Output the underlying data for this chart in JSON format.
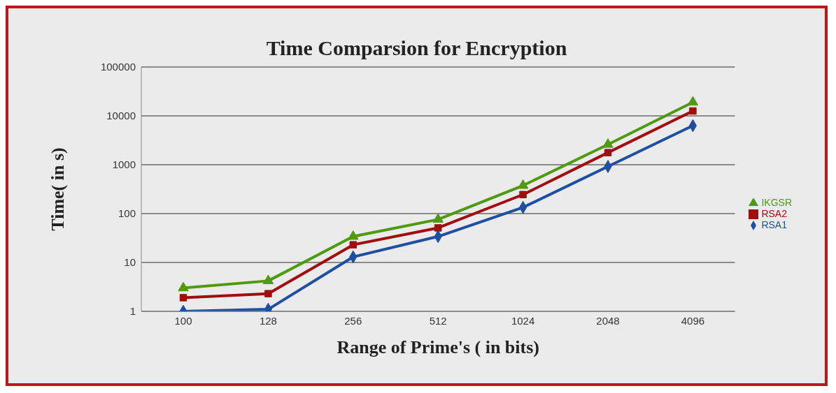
{
  "chart_data": {
    "type": "line",
    "title": "Time Comparsion for Encryption",
    "xlabel": "Range of Prime's ( in bits)",
    "ylabel": "Time( in s)",
    "categories": [
      "100",
      "128",
      "256",
      "512",
      "1024",
      "2048",
      "4096"
    ],
    "series": [
      {
        "name": "IKGSR",
        "color": "#4f9a0e",
        "marker": "triangle",
        "values": [
          3,
          4.2,
          34,
          76,
          375,
          2600,
          19000
        ]
      },
      {
        "name": "RSA2",
        "color": "#a00f0f",
        "marker": "square",
        "values": [
          1.9,
          2.3,
          23,
          51,
          245,
          1770,
          12600
        ]
      },
      {
        "name": "RSA1",
        "color": "#1f4fa0",
        "marker": "diamond",
        "values": [
          1,
          1.1,
          13,
          34,
          134,
          920,
          6300
        ]
      }
    ],
    "log": "y",
    "ylim": [
      1,
      100000
    ],
    "yticks": [
      1,
      10,
      100,
      1000,
      10000,
      100000
    ],
    "grid": "y",
    "legend": "right"
  }
}
